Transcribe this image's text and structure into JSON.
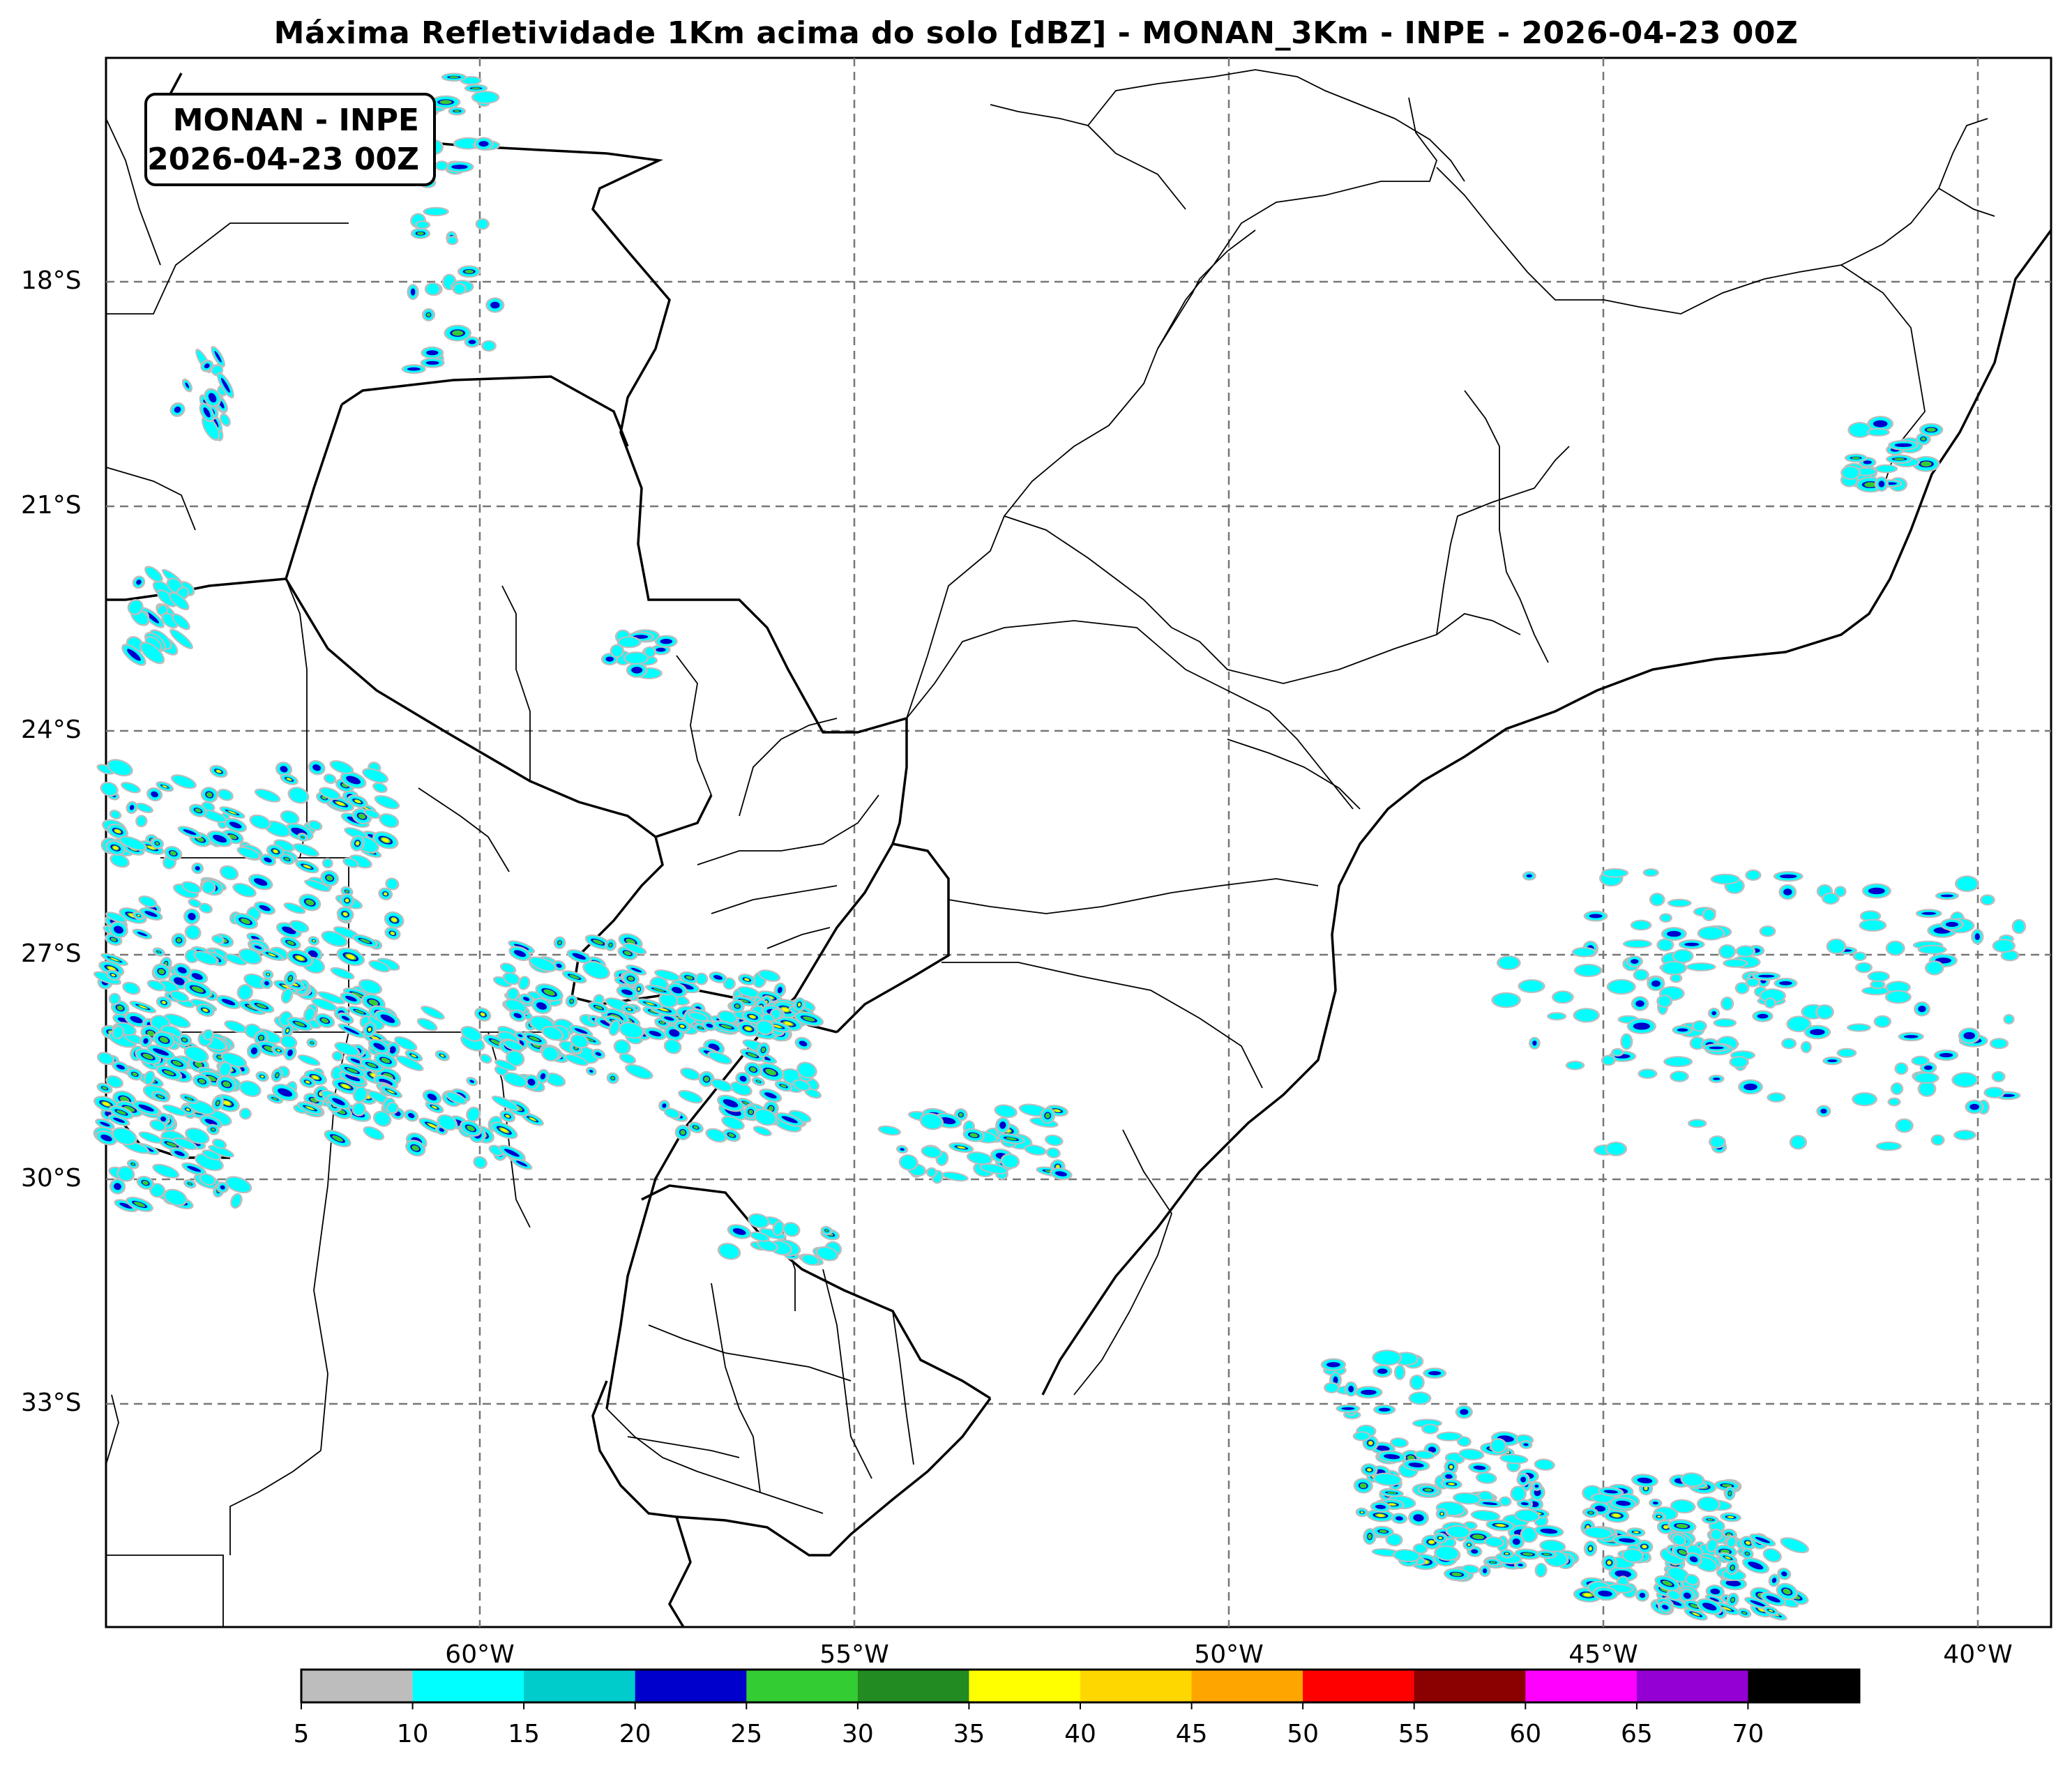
{
  "title": "Máxima Refletividade 1Km acima do solo [dBZ] - MONAN_3Km - INPE - 2026-04-23 00Z",
  "stamp": {
    "line1": "MONAN - INPE",
    "line2": "2026-04-23 00Z"
  },
  "axes": {
    "lat_labels": [
      "18°S",
      "21°S",
      "24°S",
      "27°S",
      "30°S",
      "33°S"
    ],
    "lon_labels": [
      "60°W",
      "55°W",
      "50°W",
      "45°W",
      "40°W"
    ],
    "grid": true
  },
  "colorbar": {
    "unit": "dBZ",
    "ticks": [
      "5",
      "10",
      "15",
      "20",
      "25",
      "30",
      "35",
      "40",
      "45",
      "50",
      "55",
      "60",
      "65",
      "70"
    ],
    "colors": [
      "#bdbdbd",
      "#00ffff",
      "#00cccc",
      "#0000cc",
      "#33cc33",
      "#228b22",
      "#ffff00",
      "#ffd700",
      "#ffa500",
      "#ff0000",
      "#8b0000",
      "#ff00ff",
      "#9400d3",
      "#000000"
    ]
  }
}
